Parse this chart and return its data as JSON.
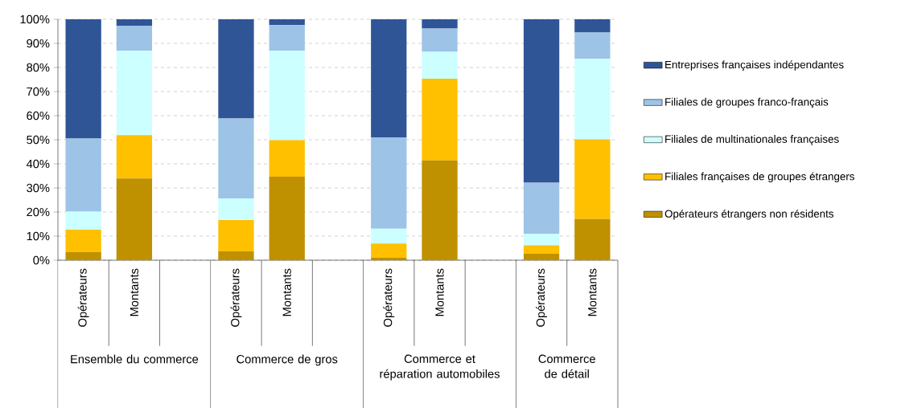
{
  "chart_data": {
    "type": "bar",
    "stacked": true,
    "categories": [
      "Opérateurs",
      "Montants",
      null,
      "Opérateurs",
      "Montants",
      null,
      "Opérateurs",
      "Montants",
      null,
      "Opérateurs",
      "Montants"
    ],
    "series": [
      {
        "name": "Opérateurs étrangers non résidents",
        "color": "#bf9000",
        "values": [
          3.3,
          33.9,
          null,
          3.7,
          34.7,
          null,
          1.0,
          41.4,
          null,
          2.7,
          17.1
        ]
      },
      {
        "name": "Filiales françaises de groupes étrangers",
        "color": "#ffc000",
        "values": [
          9.4,
          18.0,
          null,
          13.0,
          15.1,
          null,
          5.9,
          33.9,
          null,
          3.5,
          33.1
        ]
      },
      {
        "name": "Filiales de multinationales françaises",
        "color": "#ccffff",
        "values": [
          7.5,
          35.0,
          null,
          9.0,
          37.1,
          null,
          6.2,
          11.2,
          null,
          4.8,
          33.4
        ]
      },
      {
        "name": "Filiales de groupes franco-français",
        "color": "#9dc3e6",
        "values": [
          30.3,
          10.4,
          null,
          33.1,
          10.7,
          null,
          37.9,
          9.7,
          null,
          21.2,
          10.9
        ]
      },
      {
        "name": "Entreprises françaises indépendantes",
        "color": "#2f5597",
        "values": [
          49.5,
          2.7,
          null,
          41.2,
          2.4,
          null,
          49.0,
          3.8,
          null,
          67.8,
          5.5
        ]
      }
    ],
    "ylim": [
      0,
      100
    ],
    "yticks": [
      {
        "value": 0,
        "label": "0%"
      },
      {
        "value": 10,
        "label": "10%"
      },
      {
        "value": 20,
        "label": "20%"
      },
      {
        "value": 30,
        "label": "30%"
      },
      {
        "value": 40,
        "label": "40%"
      },
      {
        "value": 50,
        "label": "50%"
      },
      {
        "value": 60,
        "label": "60%"
      },
      {
        "value": 70,
        "label": "70%"
      },
      {
        "value": 80,
        "label": "80%"
      },
      {
        "value": 90,
        "label": "90%"
      },
      {
        "value": 100,
        "label": "100%"
      }
    ],
    "grid": "y",
    "legend": "right",
    "annotations": [
      "Ensemble du commerce",
      "Commerce de gros",
      "Commerce et réparation automobiles",
      "Commerce de détail"
    ]
  }
}
